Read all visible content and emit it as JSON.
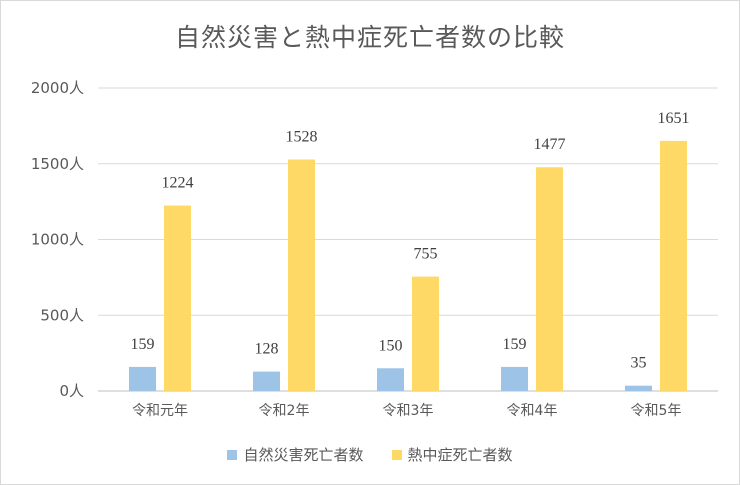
{
  "chart_data": {
    "type": "bar",
    "title": "自然災害と熱中症死亡者数の比較",
    "categories": [
      "令和元年",
      "令和2年",
      "令和3年",
      "令和4年",
      "令和5年"
    ],
    "series": [
      {
        "name": "自然災害死亡者数",
        "values": [
          159,
          128,
          150,
          159,
          35
        ],
        "color": "#9dc3e6"
      },
      {
        "name": "熱中症死亡者数",
        "values": [
          1224,
          1528,
          755,
          1477,
          1651
        ],
        "color": "#ffd966"
      }
    ],
    "ylim": [
      0,
      2000
    ],
    "yticks": [
      0,
      500,
      1000,
      1500,
      2000
    ],
    "ytick_labels": [
      "0人",
      "500人",
      "1000人",
      "1500人",
      "2000人"
    ],
    "grid": true,
    "legend": "bottom"
  }
}
